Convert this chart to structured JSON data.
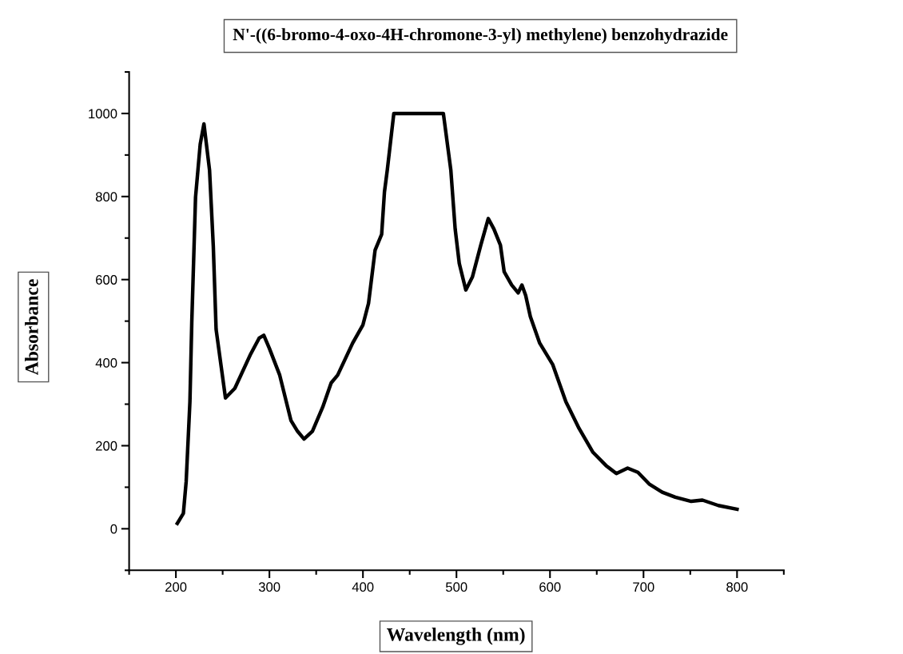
{
  "chart_data": {
    "type": "line",
    "title": "N'-((6-bromo-4-oxo-4H-chromone-3-yl) methylene) benzohydrazide",
    "xlabel": "Wavelength (nm)",
    "ylabel": "Absorbance",
    "x": [
      201.5,
      208,
      211,
      215,
      217,
      221,
      226,
      230,
      236,
      240,
      243,
      253,
      263,
      280,
      289,
      294,
      300,
      311,
      323,
      330,
      337,
      346,
      357,
      366,
      373,
      389,
      400,
      406,
      413,
      420,
      423,
      426,
      433,
      486,
      494,
      498.6,
      503,
      510,
      517,
      526,
      534,
      540,
      547,
      551,
      559,
      566,
      570,
      574,
      579,
      589,
      603,
      617,
      631,
      646,
      660,
      671,
      683,
      694,
      706,
      720,
      734,
      751,
      763,
      780,
      800
    ],
    "series": [
      {
        "color": "#000000",
        "values": [
          13,
          37,
          114,
          306,
          498,
          798,
          926,
          975,
          863,
          680,
          480,
          315,
          338,
          421,
          459,
          466,
          434,
          370,
          261,
          235,
          216,
          235,
          293,
          351,
          370,
          447,
          491,
          543,
          671,
          709,
          811,
          863,
          1000,
          1000,
          863,
          722,
          639,
          575,
          606,
          683,
          747,
          722,
          683,
          619,
          587,
          568,
          587,
          562,
          511,
          447,
          395,
          306,
          242,
          184,
          152,
          133,
          146,
          136,
          108,
          88,
          76,
          66,
          69,
          56,
          47
        ]
      }
    ],
    "xlim": [
      150,
      850
    ],
    "xticks": [
      200,
      300,
      400,
      500,
      600,
      700,
      800
    ],
    "ylim": [
      -100,
      1100
    ],
    "yticks": [
      0,
      200,
      400,
      600,
      800,
      1000
    ],
    "grid": false,
    "marker": "none",
    "line_style": "solid"
  }
}
